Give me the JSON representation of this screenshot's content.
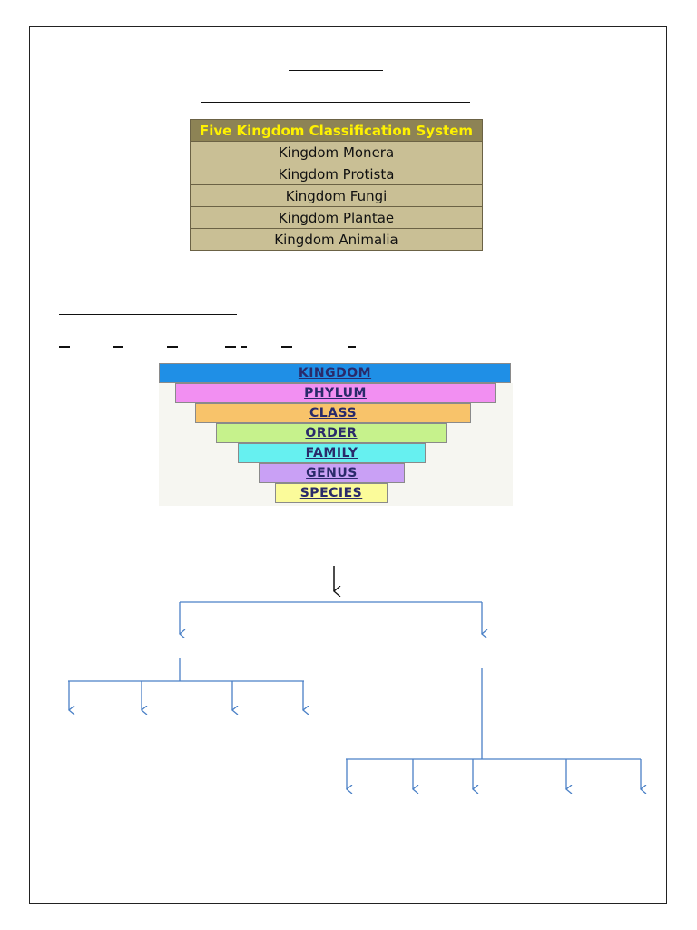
{
  "kingdom_table": {
    "header": "Five Kingdom Classification System",
    "rows": [
      "Kingdom  Monera",
      "Kingdom  Protista",
      "Kingdom  Fungi",
      "Kingdom  Plantae",
      "Kingdom  Animalia"
    ]
  },
  "taxonomy": {
    "levels": [
      {
        "label": "KINGDOM",
        "color": "#1f8fe6"
      },
      {
        "label": "PHYLUM",
        "color": "#f28ff2"
      },
      {
        "label": "CLASS",
        "color": "#f8c36a"
      },
      {
        "label": "ORDER",
        "color": "#c6f28c"
      },
      {
        "label": "FAMILY",
        "color": "#66f0f0"
      },
      {
        "label": "GENUS",
        "color": "#c9a0f5"
      },
      {
        "label": "SPECIES",
        "color": "#fbfb9a"
      }
    ]
  },
  "colors": {
    "flow_arrows": "#4a80c6",
    "page_border": "#222222"
  }
}
